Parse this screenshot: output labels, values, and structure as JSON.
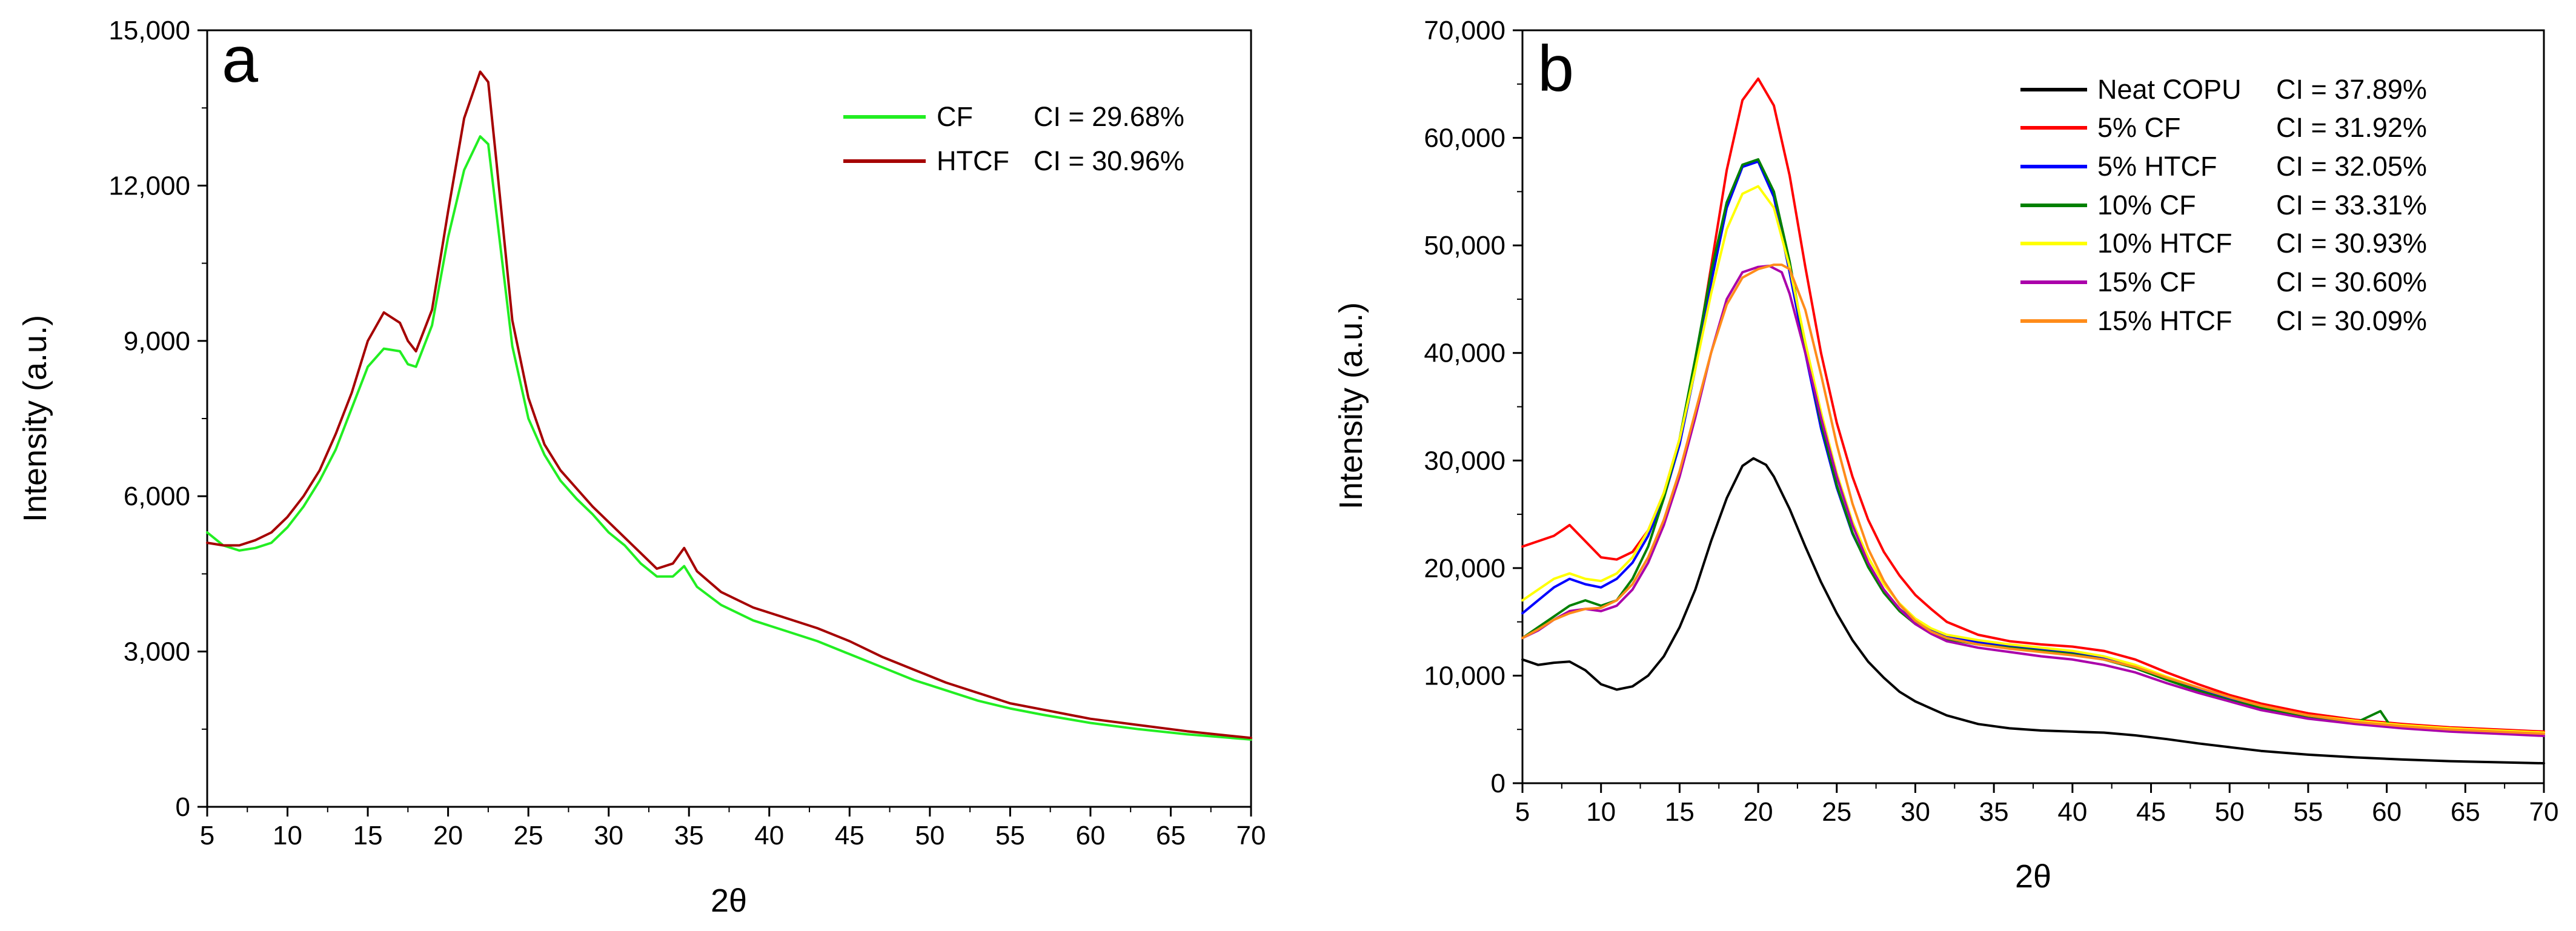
{
  "chart_data": [
    {
      "type": "line",
      "panel_label": "a",
      "xlabel": "2θ",
      "ylabel": "Intensity (a.u.)",
      "xlim": [
        5,
        70
      ],
      "ylim": [
        0,
        15000
      ],
      "x_ticks": [
        5,
        10,
        15,
        20,
        25,
        30,
        35,
        40,
        45,
        50,
        55,
        60,
        65,
        70
      ],
      "x_tick_labels": [
        "5",
        "10",
        "15",
        "20",
        "25",
        "30",
        "35",
        "40",
        "45",
        "50",
        "55",
        "60",
        "65",
        "70"
      ],
      "y_ticks": [
        0,
        3000,
        6000,
        9000,
        12000,
        15000
      ],
      "y_tick_labels": [
        "0",
        "3,000",
        "6,000",
        "9,000",
        "12,000",
        "15,000"
      ],
      "grid": false,
      "legend_position": "top-right",
      "series": [
        {
          "name": "CF",
          "ci_label": "CI = 29.68%",
          "color": "#22ee22",
          "x": [
            5,
            6,
            7,
            8,
            9,
            10,
            11,
            12,
            13,
            14,
            15,
            16,
            17,
            17.5,
            18,
            19,
            20,
            21,
            22,
            22.5,
            23,
            24,
            25,
            26,
            27,
            28,
            29,
            30,
            31,
            32,
            33,
            34,
            34.7,
            35.5,
            37,
            39,
            41,
            43,
            45,
            47,
            49,
            51,
            53,
            55,
            57,
            60,
            63,
            66,
            70
          ],
          "y": [
            5300,
            5050,
            4950,
            5000,
            5100,
            5400,
            5800,
            6300,
            6900,
            7700,
            8500,
            8850,
            8800,
            8550,
            8500,
            9300,
            11000,
            12300,
            12950,
            12800,
            11500,
            8900,
            7500,
            6800,
            6300,
            5950,
            5650,
            5300,
            5050,
            4700,
            4450,
            4450,
            4650,
            4250,
            3900,
            3600,
            3400,
            3200,
            2950,
            2700,
            2450,
            2250,
            2050,
            1900,
            1780,
            1620,
            1500,
            1400,
            1300
          ]
        },
        {
          "name": "HTCF",
          "ci_label": "CI = 30.96%",
          "color": "#a50000",
          "x": [
            5,
            6,
            7,
            8,
            9,
            10,
            11,
            12,
            13,
            14,
            15,
            16,
            17,
            17.5,
            18,
            19,
            20,
            21,
            22,
            22.5,
            23,
            24,
            25,
            26,
            27,
            28,
            29,
            30,
            31,
            32,
            33,
            34,
            34.7,
            35.5,
            37,
            39,
            41,
            43,
            45,
            47,
            49,
            51,
            53,
            55,
            57,
            60,
            63,
            66,
            70
          ],
          "y": [
            5100,
            5050,
            5050,
            5150,
            5300,
            5600,
            6000,
            6500,
            7200,
            8000,
            9000,
            9550,
            9350,
            9000,
            8800,
            9600,
            11500,
            13300,
            14200,
            14000,
            12500,
            9400,
            7900,
            7000,
            6500,
            6150,
            5800,
            5500,
            5200,
            4900,
            4600,
            4700,
            5000,
            4550,
            4150,
            3850,
            3650,
            3450,
            3200,
            2900,
            2650,
            2400,
            2200,
            2000,
            1880,
            1700,
            1580,
            1460,
            1330
          ]
        }
      ]
    },
    {
      "type": "line",
      "panel_label": "b",
      "xlabel": "2θ",
      "ylabel": "Intensity (a.u.)",
      "xlim": [
        5,
        70
      ],
      "ylim": [
        0,
        70000
      ],
      "x_ticks": [
        5,
        10,
        15,
        20,
        25,
        30,
        35,
        40,
        45,
        50,
        55,
        60,
        65,
        70
      ],
      "x_tick_labels": [
        "5",
        "10",
        "15",
        "20",
        "25",
        "30",
        "35",
        "40",
        "45",
        "50",
        "55",
        "60",
        "65",
        "70"
      ],
      "y_ticks": [
        0,
        10000,
        20000,
        30000,
        40000,
        50000,
        60000,
        70000
      ],
      "y_tick_labels": [
        "0",
        "10,000",
        "20,000",
        "30,000",
        "40,000",
        "50,000",
        "60,000",
        "70,000"
      ],
      "grid": false,
      "legend_position": "top-right",
      "series": [
        {
          "name": "Neat COPU",
          "ci_label": "CI = 37.89%",
          "color": "#000000",
          "x": [
            5,
            6,
            7,
            8,
            9,
            10,
            11,
            12,
            13,
            14,
            15,
            16,
            17,
            18,
            19,
            19.7,
            20.5,
            21,
            22,
            23,
            24,
            25,
            26,
            27,
            28,
            29,
            30,
            32,
            34,
            36,
            38,
            40,
            42,
            44,
            46,
            48,
            50,
            52,
            55,
            58,
            61,
            64,
            67,
            70
          ],
          "y": [
            11500,
            11000,
            11200,
            11300,
            10500,
            9200,
            8700,
            9000,
            10000,
            11800,
            14500,
            18000,
            22500,
            26500,
            29500,
            30200,
            29600,
            28500,
            25500,
            22000,
            18700,
            15800,
            13300,
            11300,
            9800,
            8500,
            7600,
            6300,
            5500,
            5100,
            4900,
            4800,
            4700,
            4450,
            4100,
            3700,
            3350,
            3000,
            2650,
            2400,
            2200,
            2050,
            1950,
            1850
          ]
        },
        {
          "name": "5% CF",
          "ci_label": "CI = 31.92%",
          "color": "#ff0000",
          "x": [
            5,
            6,
            7,
            8,
            9,
            10,
            11,
            12,
            13,
            14,
            15,
            16,
            17,
            18,
            19,
            20,
            21,
            22,
            23,
            24,
            25,
            26,
            27,
            28,
            29,
            30,
            31,
            32,
            34,
            36,
            38,
            40,
            42,
            44,
            46,
            48,
            50,
            52,
            55,
            58,
            61,
            64,
            67,
            70
          ],
          "y": [
            22000,
            22500,
            23000,
            24000,
            22500,
            21000,
            20800,
            21500,
            23500,
            27000,
            32000,
            39000,
            48000,
            57000,
            63500,
            65500,
            63000,
            56500,
            48000,
            40000,
            33500,
            28500,
            24500,
            21500,
            19300,
            17500,
            16200,
            15000,
            13800,
            13200,
            12900,
            12700,
            12300,
            11500,
            10300,
            9200,
            8200,
            7400,
            6500,
            5900,
            5500,
            5200,
            5000,
            4800
          ]
        },
        {
          "name": "5% HTCF",
          "ci_label": "CI = 32.05%",
          "color": "#0000ff",
          "x": [
            5,
            6,
            7,
            8,
            9,
            10,
            11,
            12,
            13,
            14,
            15,
            16,
            17,
            18,
            19,
            20,
            21,
            22,
            23,
            24,
            25,
            26,
            27,
            28,
            29,
            30,
            31,
            32,
            34,
            36,
            38,
            40,
            42,
            44,
            46,
            48,
            50,
            52,
            55,
            58,
            61,
            64,
            67,
            70
          ],
          "y": [
            15800,
            17000,
            18200,
            19000,
            18500,
            18200,
            19000,
            20500,
            23000,
            26500,
            31500,
            38500,
            46500,
            53500,
            57300,
            57800,
            54500,
            47500,
            40000,
            33000,
            27500,
            23200,
            20200,
            17900,
            16200,
            15000,
            14200,
            13600,
            13100,
            12700,
            12400,
            12100,
            11600,
            10800,
            9700,
            8700,
            7800,
            7100,
            6200,
            5700,
            5300,
            5000,
            4800,
            4600
          ]
        },
        {
          "name": "10% CF",
          "ci_label": "CI = 33.31%",
          "color": "#008000",
          "x": [
            5,
            6,
            7,
            8,
            9,
            10,
            11,
            12,
            13,
            14,
            15,
            16,
            17,
            18,
            19,
            20,
            21,
            22,
            23,
            24,
            25,
            26,
            27,
            28,
            29,
            30,
            31,
            32,
            34,
            36,
            38,
            40,
            42,
            44,
            46,
            48,
            50,
            52,
            55,
            58,
            59.6,
            60.2,
            61,
            64,
            67,
            70
          ],
          "y": [
            13500,
            14500,
            15500,
            16500,
            17000,
            16500,
            17000,
            19000,
            22000,
            26500,
            32000,
            39500,
            47500,
            54000,
            57500,
            58000,
            55000,
            48500,
            40500,
            33500,
            27700,
            23300,
            20100,
            17700,
            16000,
            14800,
            14000,
            13400,
            12900,
            12600,
            12300,
            12000,
            11500,
            10700,
            9600,
            8600,
            7700,
            7000,
            6100,
            5600,
            6700,
            5400,
            5300,
            5000,
            4800,
            4600
          ]
        },
        {
          "name": "10% HTCF",
          "ci_label": "CI = 30.93%",
          "color": "#ffff00",
          "x": [
            5,
            6,
            7,
            8,
            9,
            10,
            11,
            12,
            13,
            14,
            15,
            16,
            17,
            18,
            19,
            20,
            21,
            22,
            23,
            24,
            25,
            26,
            27,
            28,
            29,
            30,
            31,
            32,
            34,
            36,
            38,
            40,
            42,
            44,
            46,
            48,
            50,
            52,
            55,
            58,
            61,
            64,
            67,
            70
          ],
          "y": [
            17000,
            18000,
            19000,
            19500,
            19000,
            18800,
            19500,
            21000,
            23500,
            27000,
            32000,
            38500,
            45500,
            51500,
            54800,
            55500,
            53500,
            48000,
            41000,
            34500,
            28800,
            24300,
            21000,
            18500,
            16700,
            15300,
            14400,
            13800,
            13300,
            12900,
            12600,
            12300,
            11800,
            11000,
            9900,
            8900,
            8000,
            7200,
            6300,
            5800,
            5400,
            5100,
            4900,
            4700
          ]
        },
        {
          "name": "15% CF",
          "ci_label": "CI = 30.60%",
          "color": "#aa00aa",
          "x": [
            5,
            6,
            7,
            8,
            9,
            10,
            11,
            12,
            13,
            14,
            15,
            16,
            17,
            18,
            19,
            20,
            20.7,
            21.5,
            22,
            23,
            24,
            25,
            26,
            27,
            28,
            29,
            30,
            31,
            32,
            34,
            36,
            38,
            40,
            42,
            44,
            46,
            48,
            50,
            52,
            55,
            58,
            61,
            64,
            67,
            70
          ],
          "y": [
            13500,
            14200,
            15200,
            16000,
            16200,
            16000,
            16500,
            18000,
            20500,
            24000,
            28500,
            34000,
            40000,
            45000,
            47500,
            48000,
            48100,
            47500,
            45500,
            40000,
            34000,
            28500,
            24000,
            20500,
            18000,
            16200,
            14800,
            13900,
            13200,
            12600,
            12200,
            11800,
            11500,
            11000,
            10300,
            9300,
            8400,
            7600,
            6800,
            6000,
            5500,
            5100,
            4800,
            4600,
            4400
          ]
        },
        {
          "name": "15% HTCF",
          "ci_label": "CI = 30.09%",
          "color": "#ff8c1a",
          "x": [
            5,
            6,
            7,
            8,
            9,
            10,
            11,
            12,
            13,
            14,
            15,
            16,
            17,
            18,
            19,
            20,
            21,
            21.5,
            22,
            23,
            24,
            25,
            26,
            27,
            28,
            29,
            30,
            31,
            32,
            34,
            36,
            38,
            40,
            42,
            44,
            46,
            48,
            50,
            52,
            55,
            58,
            61,
            64,
            67,
            70
          ],
          "y": [
            13500,
            14300,
            15200,
            15800,
            16200,
            16300,
            17000,
            18500,
            21000,
            24500,
            29000,
            34500,
            40000,
            44500,
            47000,
            47800,
            48200,
            48200,
            47800,
            44000,
            38000,
            31500,
            26000,
            21800,
            18800,
            16600,
            15100,
            14100,
            13500,
            12900,
            12500,
            12200,
            11900,
            11500,
            10800,
            9800,
            8900,
            8000,
            7200,
            6300,
            5700,
            5300,
            5000,
            4800,
            4600
          ]
        }
      ]
    }
  ]
}
